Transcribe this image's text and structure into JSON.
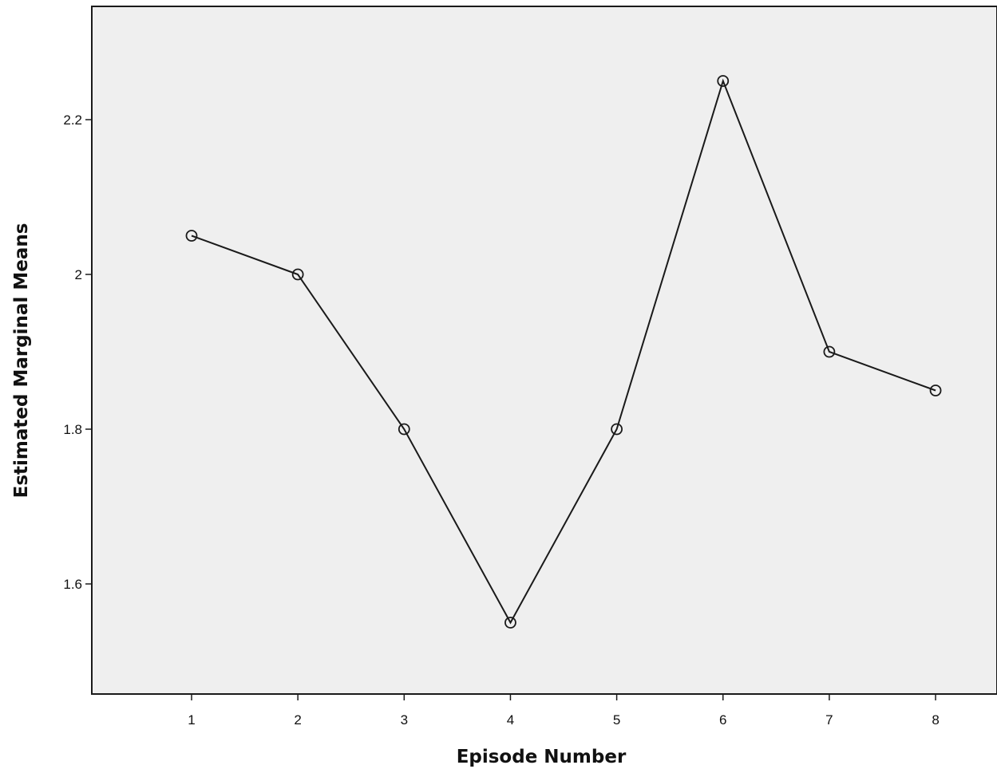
{
  "chart_data": {
    "type": "line",
    "title": "",
    "xlabel": "Episode Number",
    "ylabel": "Estimated Marginal Means",
    "categories": [
      "1",
      "2",
      "3",
      "4",
      "5",
      "6",
      "7",
      "8"
    ],
    "series": [
      {
        "values": [
          2.05,
          2.0,
          1.8,
          1.55,
          1.8,
          2.25,
          1.9,
          1.85
        ]
      }
    ],
    "yticks": [
      "1.6",
      "1.8",
      "2",
      "2.2"
    ],
    "ylim": [
      1.48,
      2.34
    ],
    "grid": false,
    "legend": "none",
    "marker": "open-circle",
    "colors": {
      "plot_background": "#efefef",
      "line": "#1a1a1a",
      "axis": "#1a1a1a",
      "text": "#111111"
    }
  }
}
